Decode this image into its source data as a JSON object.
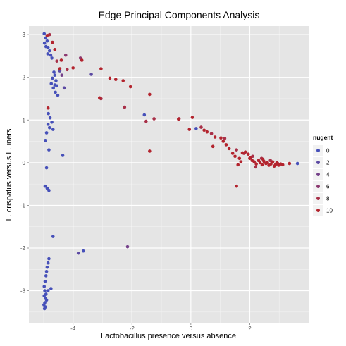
{
  "chart_data": {
    "type": "scatter",
    "title": "Edge Principal Components Analysis",
    "xlabel": "Lactobacillus presence versus absence",
    "ylabel": "L. crispatus versus L. iners",
    "xlim": [
      -5.5,
      4.0
    ],
    "ylim": [
      -3.75,
      3.2
    ],
    "x_ticks": [
      -4,
      -2,
      0,
      2
    ],
    "y_ticks": [
      -3,
      -2,
      -1,
      0,
      1,
      2,
      3
    ],
    "grid": true,
    "background": "#e5e5e5",
    "legend": {
      "title": "nugent",
      "position": "right",
      "entries": [
        {
          "label": "0",
          "color": "#4650b9"
        },
        {
          "label": "2",
          "color": "#5c4aa3"
        },
        {
          "label": "4",
          "color": "#75418a"
        },
        {
          "label": "6",
          "color": "#8c3970"
        },
        {
          "label": "8",
          "color": "#a83048"
        },
        {
          "label": "10",
          "color": "#b3242e"
        }
      ]
    },
    "series": [
      {
        "name": "0",
        "color": "#4650b9",
        "points": [
          [
            -4.98,
            3.02
          ],
          [
            -4.93,
            2.92
          ],
          [
            -4.88,
            2.85
          ],
          [
            -4.97,
            2.8
          ],
          [
            -4.92,
            2.72
          ],
          [
            -4.85,
            2.7
          ],
          [
            -4.8,
            2.62
          ],
          [
            -4.86,
            2.55
          ],
          [
            -4.76,
            2.52
          ],
          [
            -4.72,
            2.45
          ],
          [
            -4.65,
            2.12
          ],
          [
            -4.62,
            2.05
          ],
          [
            -4.7,
            1.98
          ],
          [
            -4.58,
            1.92
          ],
          [
            -4.74,
            1.85
          ],
          [
            -4.62,
            1.82
          ],
          [
            -4.55,
            1.8
          ],
          [
            -4.67,
            1.75
          ],
          [
            -4.6,
            1.65
          ],
          [
            -4.52,
            1.58
          ],
          [
            -4.84,
            1.15
          ],
          [
            -4.78,
            1.05
          ],
          [
            -4.72,
            0.95
          ],
          [
            -4.85,
            0.9
          ],
          [
            -4.8,
            0.82
          ],
          [
            -4.68,
            0.78
          ],
          [
            -4.9,
            0.7
          ],
          [
            -4.94,
            0.52
          ],
          [
            -4.82,
            0.3
          ],
          [
            -4.9,
            -0.12
          ],
          [
            -4.95,
            -0.55
          ],
          [
            -4.88,
            -0.6
          ],
          [
            -4.82,
            -0.65
          ],
          [
            -4.68,
            -1.73
          ],
          [
            -4.82,
            -2.25
          ],
          [
            -4.85,
            -2.35
          ],
          [
            -4.88,
            -2.45
          ],
          [
            -4.9,
            -2.55
          ],
          [
            -4.92,
            -2.65
          ],
          [
            -4.95,
            -2.78
          ],
          [
            -4.98,
            -2.9
          ],
          [
            -4.96,
            -3.0
          ],
          [
            -4.92,
            -3.08
          ],
          [
            -4.98,
            -3.12
          ],
          [
            -4.93,
            -3.18
          ],
          [
            -4.9,
            -3.22
          ],
          [
            -4.96,
            -3.28
          ],
          [
            -4.99,
            -3.33
          ],
          [
            -4.94,
            -3.38
          ],
          [
            -4.97,
            -3.42
          ],
          [
            -4.85,
            -3.0
          ],
          [
            -4.75,
            -2.95
          ],
          [
            -4.35,
            0.17
          ],
          [
            -3.65,
            -2.07
          ],
          [
            -1.58,
            1.12
          ],
          [
            0.18,
            0.8
          ],
          [
            3.62,
            -0.02
          ]
        ]
      },
      {
        "name": "2",
        "color": "#5c4aa3",
        "points": [
          [
            -4.45,
            2.15
          ],
          [
            -3.38,
            2.07
          ],
          [
            -4.3,
            1.75
          ],
          [
            -3.82,
            -2.12
          ]
        ]
      },
      {
        "name": "4",
        "color": "#75418a",
        "points": [
          [
            -4.38,
            2.05
          ],
          [
            -2.15,
            -1.97
          ]
        ]
      },
      {
        "name": "6",
        "color": "#8c3970",
        "points": [
          [
            -4.25,
            2.52
          ],
          [
            -3.75,
            2.45
          ]
        ]
      },
      {
        "name": "8",
        "color": "#a83048",
        "points": [
          [
            -4.8,
            3.0
          ],
          [
            -4.55,
            2.38
          ],
          [
            -4.2,
            2.18
          ],
          [
            -3.05,
            1.5
          ],
          [
            -2.25,
            1.3
          ],
          [
            -1.52,
            0.97
          ],
          [
            -1.25,
            1.03
          ],
          [
            -0.4,
            1.03
          ],
          [
            0.35,
            0.83
          ],
          [
            0.7,
            0.68
          ],
          [
            1.15,
            0.57
          ],
          [
            1.55,
            0.3
          ],
          [
            1.8,
            0.22
          ],
          [
            2.1,
            0.15
          ],
          [
            2.4,
            0.1
          ],
          [
            2.7,
            0.05
          ],
          [
            2.95,
            -0.02
          ],
          [
            2.2,
            -0.1
          ]
        ]
      },
      {
        "name": "10",
        "color": "#b3242e",
        "points": [
          [
            -4.88,
            2.98
          ],
          [
            -4.7,
            2.82
          ],
          [
            -4.62,
            2.65
          ],
          [
            -4.4,
            2.4
          ],
          [
            -4.45,
            2.2
          ],
          [
            -4.0,
            2.22
          ],
          [
            -3.7,
            2.4
          ],
          [
            -3.05,
            2.2
          ],
          [
            -3.1,
            1.52
          ],
          [
            -2.75,
            1.98
          ],
          [
            -2.55,
            1.95
          ],
          [
            -2.3,
            1.92
          ],
          [
            -2.05,
            1.78
          ],
          [
            -1.4,
            1.6
          ],
          [
            -1.4,
            0.27
          ],
          [
            -4.85,
            1.28
          ],
          [
            -0.42,
            1.02
          ],
          [
            0.05,
            1.06
          ],
          [
            -0.05,
            0.78
          ],
          [
            0.45,
            0.76
          ],
          [
            0.55,
            0.72
          ],
          [
            0.82,
            0.6
          ],
          [
            0.75,
            0.38
          ],
          [
            1.02,
            0.58
          ],
          [
            1.1,
            0.5
          ],
          [
            1.2,
            0.42
          ],
          [
            1.3,
            0.33
          ],
          [
            1.42,
            0.22
          ],
          [
            1.5,
            0.15
          ],
          [
            1.65,
            0.1
          ],
          [
            1.7,
            0.02
          ],
          [
            1.6,
            -0.05
          ],
          [
            1.75,
            0.23
          ],
          [
            1.85,
            0.25
          ],
          [
            1.95,
            0.2
          ],
          [
            2.02,
            0.12
          ],
          [
            2.08,
            0.05
          ],
          [
            2.15,
            0.02
          ],
          [
            2.22,
            -0.03
          ],
          [
            2.3,
            0.05
          ],
          [
            2.35,
            0.0
          ],
          [
            2.42,
            -0.05
          ],
          [
            2.48,
            0.03
          ],
          [
            2.55,
            -0.02
          ],
          [
            2.6,
            0.0
          ],
          [
            2.65,
            -0.06
          ],
          [
            2.72,
            -0.03
          ],
          [
            2.78,
            0.02
          ],
          [
            2.83,
            -0.08
          ],
          [
            2.88,
            -0.04
          ],
          [
            2.92,
            0.0
          ],
          [
            2.98,
            -0.06
          ],
          [
            3.05,
            -0.03
          ],
          [
            3.12,
            -0.05
          ],
          [
            3.35,
            -0.02
          ],
          [
            1.55,
            -0.55
          ],
          [
            2.45,
            0.08
          ],
          [
            2.0,
            0.1
          ]
        ]
      }
    ]
  }
}
